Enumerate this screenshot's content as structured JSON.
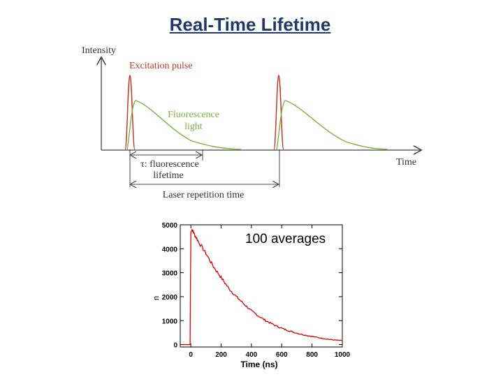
{
  "slide": {
    "title": "Real-Time Lifetime"
  },
  "schematic": {
    "y_axis_label": "Intensity",
    "x_axis_label": "Time",
    "excitation_label": "Excitation pulse",
    "fluorescence_label_line1": "Fluorescence",
    "fluorescence_label_line2": "light",
    "tau_label_line1": "τ: fluorescence",
    "tau_label_line2": "lifetime",
    "repetition_label": "Laser repetition time",
    "colors": {
      "excitation": "#c0392b",
      "fluorescence": "#7cb342",
      "axis": "#444444"
    }
  },
  "decay_plot": {
    "annotation": "100 averages",
    "xlabel": "Time (ns)",
    "y_axis_fragment": "n",
    "line_color": "#dd0000"
  },
  "chart_data": {
    "type": "line",
    "title": "",
    "xlabel": "Time (ns)",
    "ylabel": "",
    "xlim": [
      -70,
      1000
    ],
    "ylim": [
      -100,
      5000
    ],
    "x_ticks": [
      0,
      200,
      400,
      600,
      800,
      1000
    ],
    "y_ticks": [
      0,
      1000,
      2000,
      3000,
      4000,
      5000
    ],
    "series": [
      {
        "x": [
          -60,
          -5,
          0,
          10,
          20,
          50,
          100,
          150,
          200,
          250,
          300,
          350,
          400,
          450,
          500,
          550,
          600,
          650,
          700,
          750,
          800,
          850,
          900,
          950,
          1000
        ],
        "values": [
          0,
          0,
          4700,
          4800,
          4650,
          4300,
          3800,
          3250,
          2800,
          2350,
          2000,
          1700,
          1400,
          1180,
          980,
          820,
          680,
          570,
          480,
          400,
          340,
          280,
          230,
          190,
          160
        ]
      }
    ]
  }
}
